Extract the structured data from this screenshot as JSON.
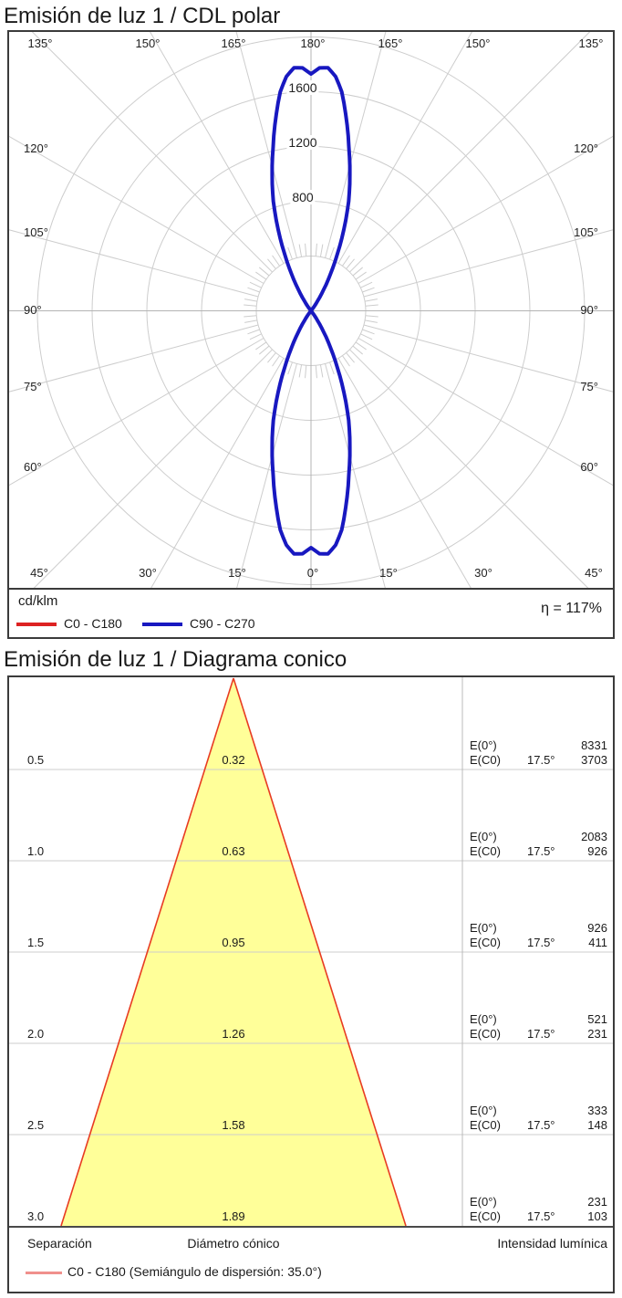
{
  "polar_section": {
    "title": "Emisión de luz 1 / CDL polar",
    "angle_labels_top": [
      "135°",
      "150°",
      "165°",
      "180°",
      "165°",
      "150°",
      "135°"
    ],
    "angle_labels_left": [
      "120°",
      "105°",
      "90°",
      "75°",
      "60°"
    ],
    "angle_labels_right": [
      "120°",
      "105°",
      "90°",
      "75°",
      "60°"
    ],
    "angle_labels_bottom": [
      "45°",
      "30°",
      "15°",
      "0°",
      "15°",
      "30°",
      "45°"
    ],
    "radial_labels": [
      "1600",
      "1200",
      "800"
    ],
    "unit": "cd/klm",
    "efficiency": "η = 117%",
    "legend": [
      {
        "label": "C0 - C180",
        "color": "#dd2222"
      },
      {
        "label": "C90 - C270",
        "color": "#1818c0"
      }
    ]
  },
  "cone_section": {
    "title": "Emisión de luz 1 / Diagrama conico",
    "rows": [
      {
        "separation": "0.5",
        "diameter": "0.32",
        "e0_label": "E(0°)",
        "e0": "8331",
        "ec0_label": "E(C0)",
        "angle": "17.5°",
        "ec0": "3703"
      },
      {
        "separation": "1.0",
        "diameter": "0.63",
        "e0_label": "E(0°)",
        "e0": "2083",
        "ec0_label": "E(C0)",
        "angle": "17.5°",
        "ec0": "926"
      },
      {
        "separation": "1.5",
        "diameter": "0.95",
        "e0_label": "E(0°)",
        "e0": "926",
        "ec0_label": "E(C0)",
        "angle": "17.5°",
        "ec0": "411"
      },
      {
        "separation": "2.0",
        "diameter": "1.26",
        "e0_label": "E(0°)",
        "e0": "521",
        "ec0_label": "E(C0)",
        "angle": "17.5°",
        "ec0": "231"
      },
      {
        "separation": "2.5",
        "diameter": "1.58",
        "e0_label": "E(0°)",
        "e0": "333",
        "ec0_label": "E(C0)",
        "angle": "17.5°",
        "ec0": "148"
      },
      {
        "separation": "3.0",
        "diameter": "1.89",
        "e0_label": "E(0°)",
        "e0": "231",
        "ec0_label": "E(C0)",
        "angle": "17.5°",
        "ec0": "103"
      }
    ],
    "footer": {
      "separation": "Separación",
      "diameter": "Diámetro cónico",
      "intensity": "Intensidad lumínica"
    },
    "legend_label": "C0 - C180 (Semiángulo de dispersión: 35.0°)"
  },
  "chart_data": [
    {
      "type": "line",
      "subtype": "polar-intensity-CDL",
      "title": "Emisión de luz 1 / CDL polar",
      "units": "cd/klm",
      "angular_ticks_deg": [
        0,
        15,
        30,
        45,
        60,
        75,
        90,
        105,
        120,
        135,
        150,
        165,
        180
      ],
      "radial_ticks": [
        400,
        800,
        1200,
        1600,
        2000
      ],
      "radial_labeled_ticks": [
        800,
        1200,
        1600
      ],
      "efficiency_percent": 117,
      "grid": true,
      "series": [
        {
          "name": "C0 - C180",
          "color": "#dd2222",
          "symmetric_up_down": true,
          "points_deg_cd": [
            [
              0,
              1730
            ],
            [
              2,
              1775
            ],
            [
              4,
              1780
            ],
            [
              6,
              1720
            ],
            [
              8,
              1615
            ],
            [
              10,
              1460
            ],
            [
              13,
              1230
            ],
            [
              16,
              1030
            ],
            [
              19,
              845
            ],
            [
              22,
              640
            ],
            [
              25,
              455
            ],
            [
              28,
              300
            ],
            [
              31,
              175
            ],
            [
              34,
              85
            ],
            [
              37,
              25
            ],
            [
              40,
              0
            ]
          ]
        },
        {
          "name": "C90 - C270",
          "color": "#1818c0",
          "symmetric_up_down": true,
          "points_deg_cd": [
            [
              0,
              1730
            ],
            [
              2,
              1775
            ],
            [
              4,
              1780
            ],
            [
              6,
              1720
            ],
            [
              8,
              1615
            ],
            [
              10,
              1460
            ],
            [
              13,
              1230
            ],
            [
              16,
              1030
            ],
            [
              19,
              845
            ],
            [
              22,
              640
            ],
            [
              25,
              455
            ],
            [
              28,
              300
            ],
            [
              31,
              175
            ],
            [
              34,
              85
            ],
            [
              37,
              25
            ],
            [
              40,
              0
            ]
          ]
        }
      ]
    },
    {
      "type": "area",
      "subtype": "cone-diagram",
      "title": "Emisión de luz 1 / Diagrama conico",
      "beam_semi_angle_deg": 17.5,
      "dispersion_semi_angle_deg": 35.0,
      "separations_m": [
        0.5,
        1.0,
        1.5,
        2.0,
        2.5,
        3.0
      ],
      "cone_diameters_m": [
        0.32,
        0.63,
        0.95,
        1.26,
        1.58,
        1.89
      ],
      "E0_lux": [
        8331,
        2083,
        926,
        521,
        333,
        231
      ],
      "EC0_lux": [
        3703,
        926,
        411,
        231,
        148,
        103
      ],
      "cone_fill": "#ffff99",
      "cone_edge": "#e83b22"
    }
  ]
}
